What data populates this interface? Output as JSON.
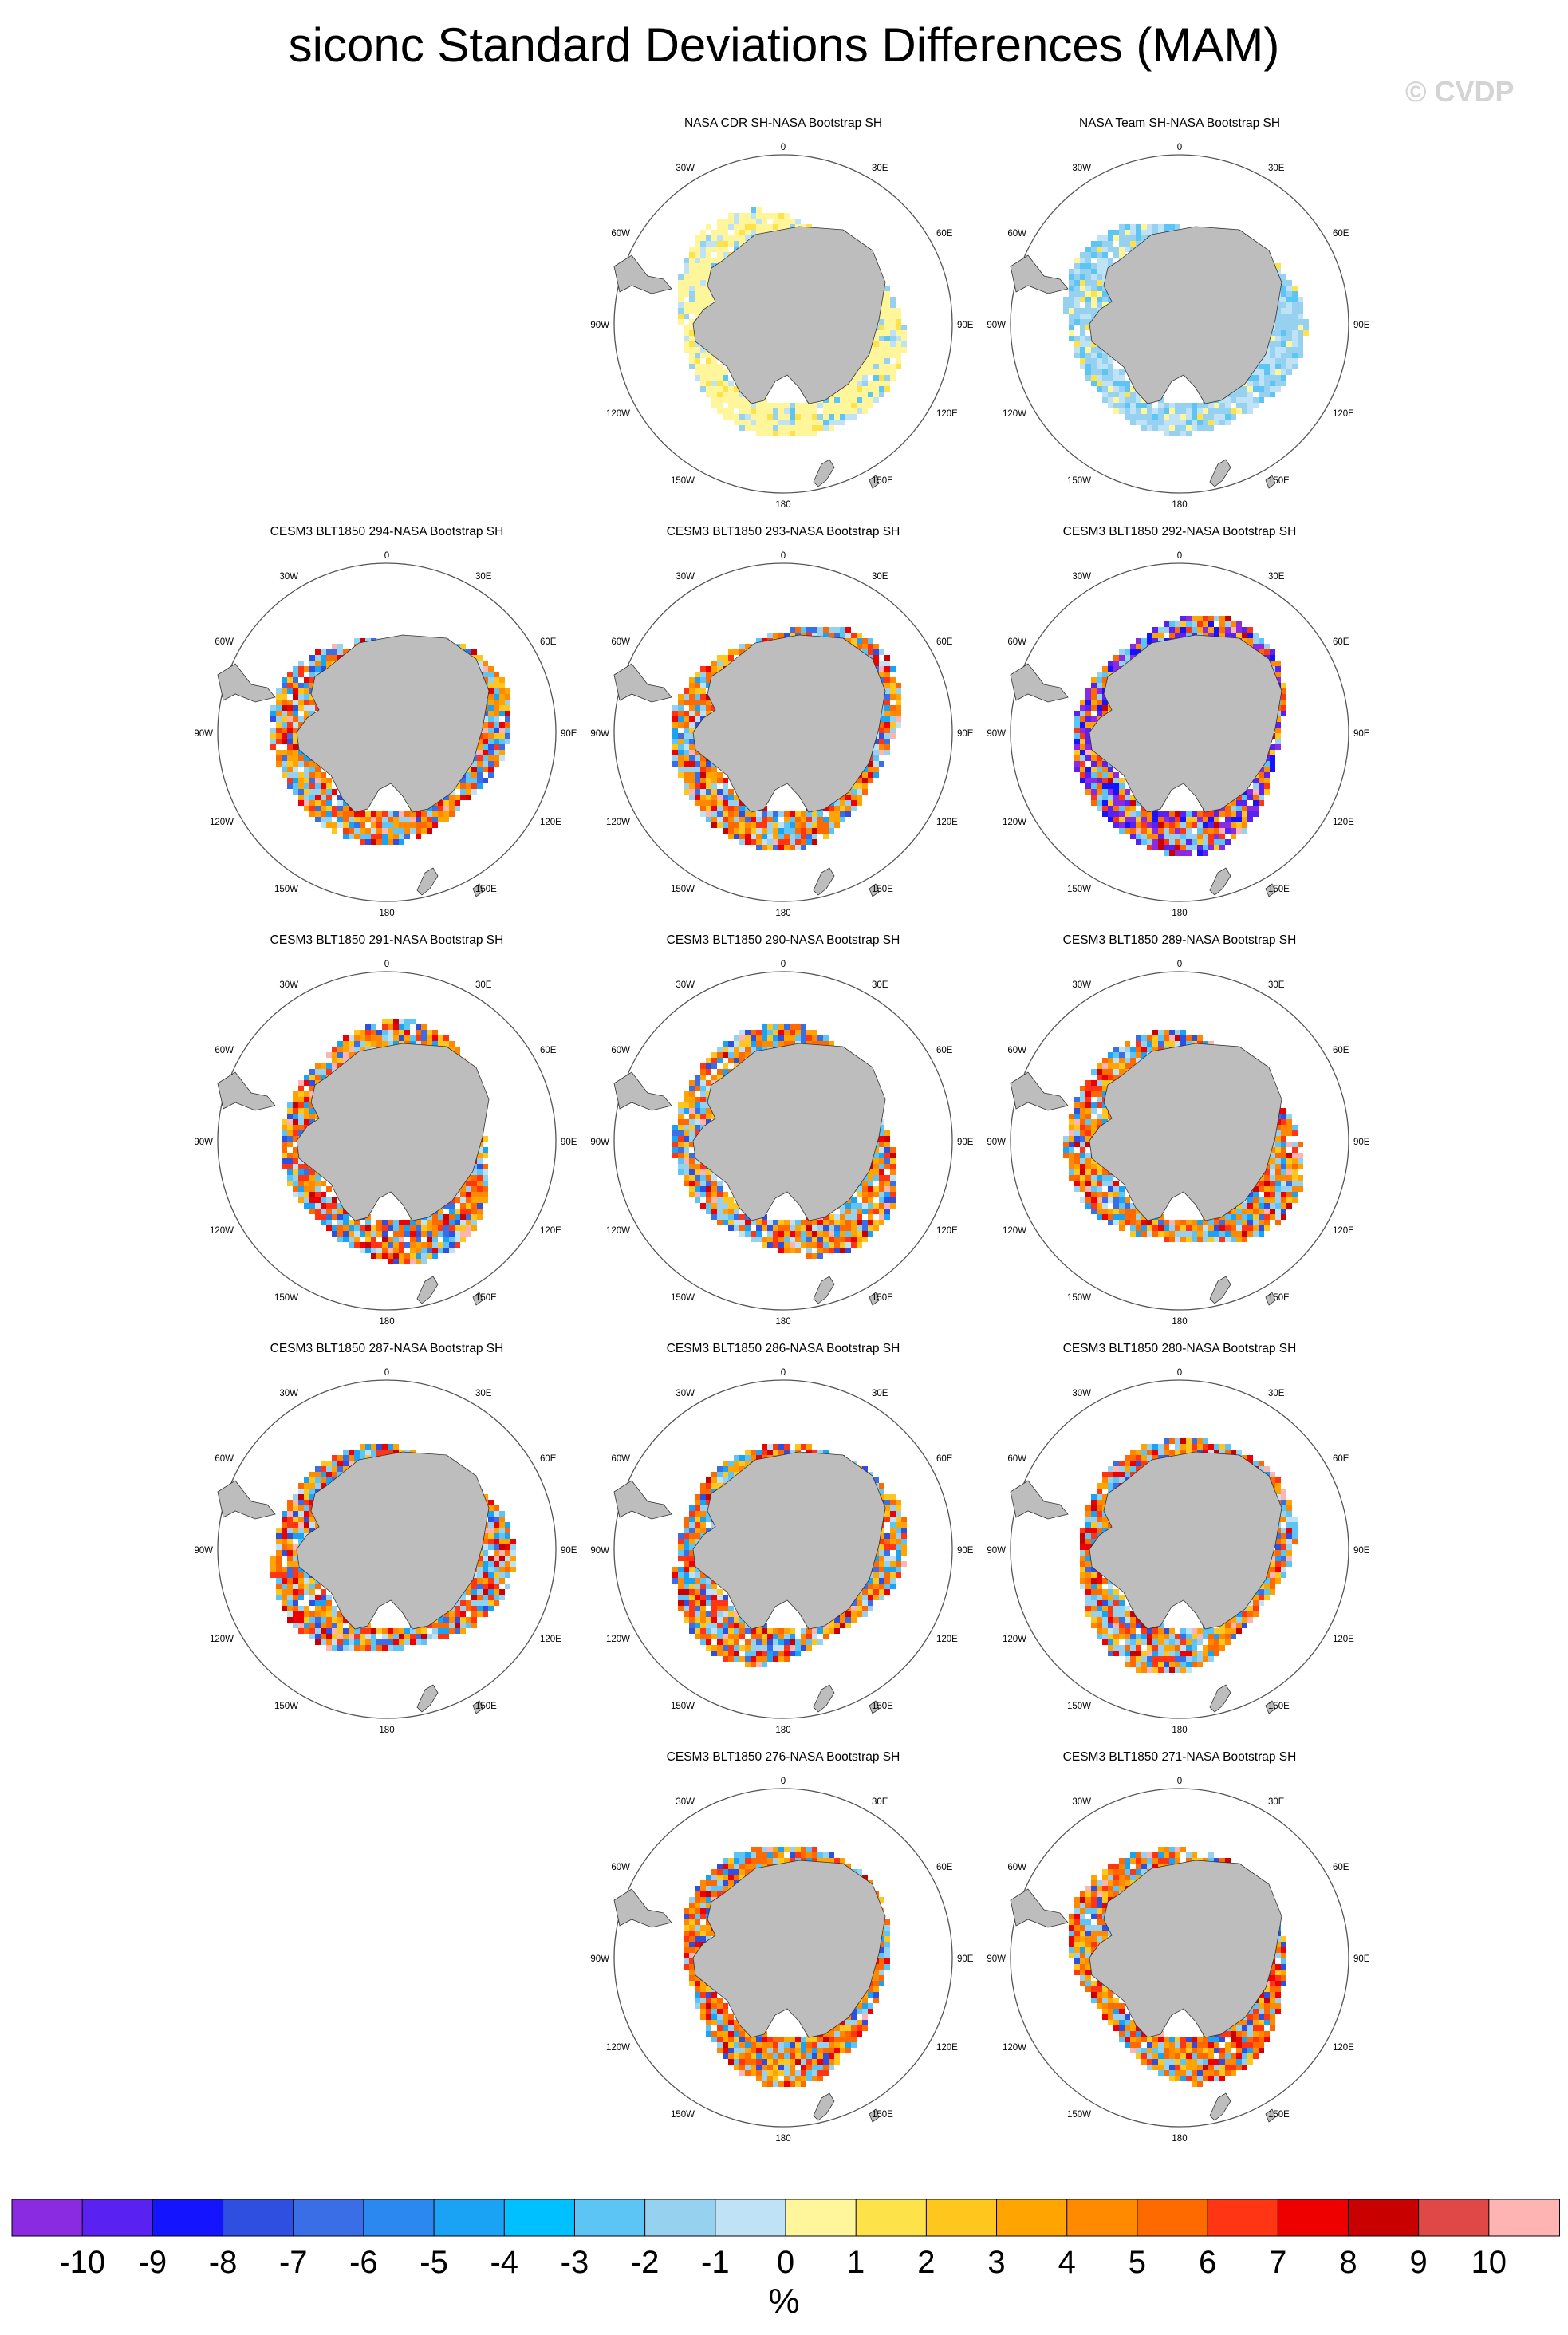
{
  "title": "siconc Standard Deviations Differences (MAM)",
  "watermark": "© CVDP",
  "units": "%",
  "chart_data": {
    "type": "heatmap",
    "projection": "south-polar-stereographic",
    "title": "siconc Standard Deviations Differences (MAM)",
    "colorbar": {
      "labels": [
        "-10",
        "-9",
        "-8",
        "-7",
        "-6",
        "-5",
        "-4",
        "-3",
        "-2",
        "-1",
        "0",
        "1",
        "2",
        "3",
        "4",
        "5",
        "6",
        "7",
        "8",
        "9",
        "10"
      ],
      "colors": [
        "#8a2be2",
        "#5a22f0",
        "#1414ff",
        "#2e4fe0",
        "#3a6ee6",
        "#2b88f0",
        "#1aa2f5",
        "#00c0ff",
        "#5cc5f5",
        "#96d2ef",
        "#bfe2f6",
        "#fff59a",
        "#fde24a",
        "#ffc61e",
        "#ffa400",
        "#ff8a00",
        "#ff6a00",
        "#ff3514",
        "#ee0000",
        "#c80000",
        "#e04848",
        "#ffb4b4"
      ],
      "units": "%"
    },
    "map_labels": {
      "lon_top": "0",
      "lon_30w": "30W",
      "lon_30e": "30E",
      "lon_60w": "60W",
      "lon_60e": "60E",
      "lon_90w": "90W",
      "lon_90e": "90E",
      "lon_120w": "120W",
      "lon_120e": "120E",
      "lon_150w": "150W",
      "lon_150e": "150E",
      "lon_bottom": "180"
    },
    "panels": [
      {
        "title": "NASA CDR SH-NASA Bootstrap SH",
        "row": 0,
        "col": 1,
        "pattern": "obs_cdr"
      },
      {
        "title": "NASA Team SH-NASA Bootstrap SH",
        "row": 0,
        "col": 2,
        "pattern": "obs_team"
      },
      {
        "title": "CESM3 BLT1850 294-NASA Bootstrap SH",
        "row": 1,
        "col": 0,
        "pattern": "model_mixed"
      },
      {
        "title": "CESM3 BLT1850 293-NASA Bootstrap SH",
        "row": 1,
        "col": 1,
        "pattern": "model_mixed"
      },
      {
        "title": "CESM3 BLT1850 292-NASA Bootstrap SH",
        "row": 1,
        "col": 2,
        "pattern": "model_purple"
      },
      {
        "title": "CESM3 BLT1850 291-NASA Bootstrap SH",
        "row": 2,
        "col": 0,
        "pattern": "model_mixed"
      },
      {
        "title": "CESM3 BLT1850 290-NASA Bootstrap SH",
        "row": 2,
        "col": 1,
        "pattern": "model_mixed"
      },
      {
        "title": "CESM3 BLT1850 289-NASA Bootstrap SH",
        "row": 2,
        "col": 2,
        "pattern": "model_mixed"
      },
      {
        "title": "CESM3 BLT1850 287-NASA Bootstrap SH",
        "row": 3,
        "col": 0,
        "pattern": "model_mixed"
      },
      {
        "title": "CESM3 BLT1850 286-NASA Bootstrap SH",
        "row": 3,
        "col": 1,
        "pattern": "model_mixed"
      },
      {
        "title": "CESM3 BLT1850 280-NASA Bootstrap SH",
        "row": 3,
        "col": 2,
        "pattern": "model_mixed"
      },
      {
        "title": "CESM3 BLT1850 276-NASA Bootstrap SH",
        "row": 4,
        "col": 1,
        "pattern": "model_warm"
      },
      {
        "title": "CESM3 BLT1850 271-NASA Bootstrap SH",
        "row": 4,
        "col": 2,
        "pattern": "model_warm"
      }
    ]
  }
}
